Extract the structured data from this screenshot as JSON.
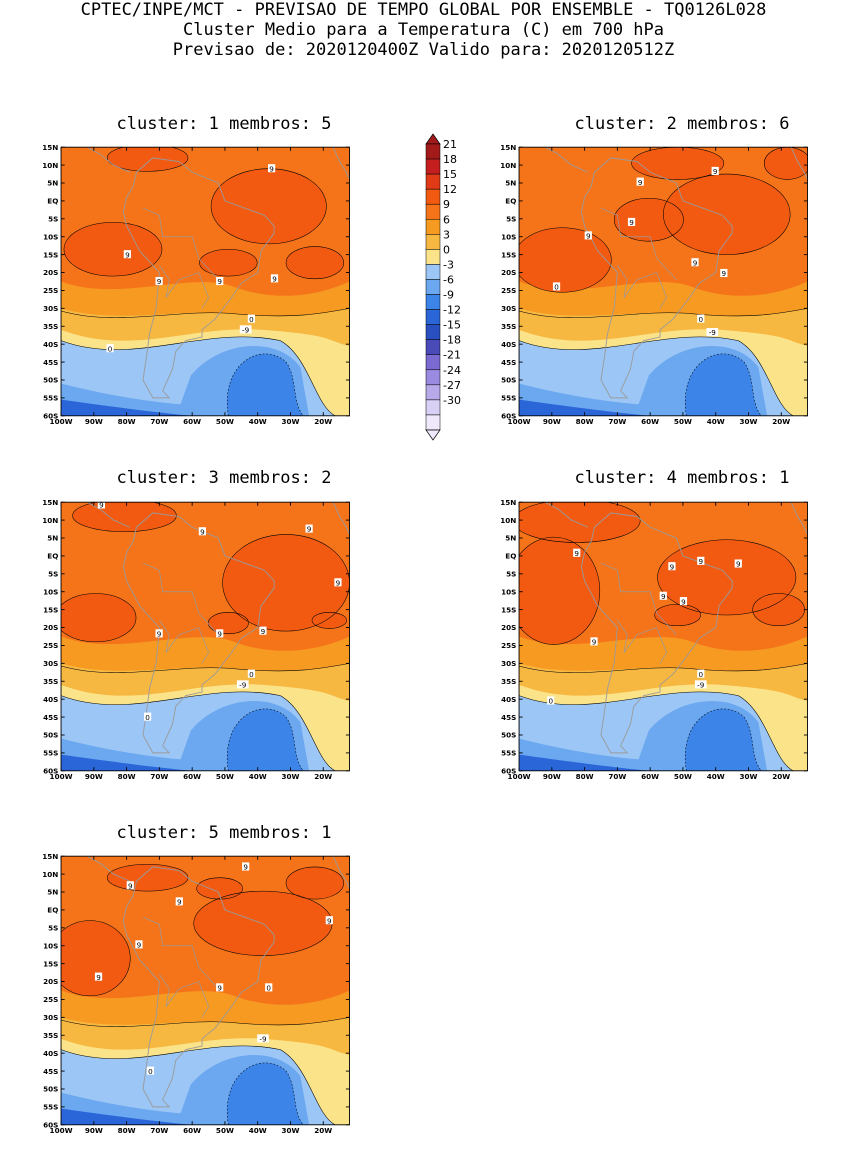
{
  "header": {
    "line1": "CPTEC/INPE/MCT - PREVISAO DE TEMPO GLOBAL POR ENSEMBLE - TQ0126L028",
    "line2": "Cluster Medio para a Temperatura (C) em 700 hPa",
    "line3": "Previsao de: 2020120400Z   Valido para: 2020120512Z"
  },
  "axes": {
    "lat_labels": [
      "15N",
      "10N",
      "5N",
      "EQ",
      "5S",
      "10S",
      "15S",
      "20S",
      "25S",
      "30S",
      "35S",
      "40S",
      "45S",
      "50S",
      "55S",
      "60S"
    ],
    "lon_labels": [
      "100W",
      "90W",
      "80W",
      "70W",
      "60W",
      "50W",
      "40W",
      "30W",
      "20W"
    ]
  },
  "colorbar": {
    "labels": [
      "21",
      "18",
      "15",
      "12",
      "9",
      "6",
      "3",
      "0",
      "-3",
      "-6",
      "-9",
      "-12",
      "-15",
      "-18",
      "-21",
      "-24",
      "-27",
      "-30"
    ],
    "colors": [
      "#a31a1a",
      "#c41e1e",
      "#e03a16",
      "#f25a12",
      "#f5741a",
      "#f79a22",
      "#f7b842",
      "#fbe38a",
      "#9cc6f5",
      "#6ba8f0",
      "#3c84e8",
      "#2a66d8",
      "#2a4fc0",
      "#4a4ab8",
      "#7a6ad2",
      "#9a8ae0",
      "#b8aaea",
      "#d8d0f5",
      "#efe9fb"
    ]
  },
  "panels": [
    {
      "title": "cluster: 1  membros: 5",
      "labels": [
        "9",
        "9",
        "9",
        "9",
        "9",
        "0",
        "0",
        "-9"
      ]
    },
    {
      "title": "cluster: 2  membros: 6",
      "labels": [
        "9",
        "9",
        "9",
        "9",
        "9",
        "9",
        "0",
        "0",
        "-9"
      ]
    },
    {
      "title": "cluster: 3  membros: 2",
      "labels": [
        "9",
        "9",
        "9",
        "9",
        "9",
        "9",
        "9",
        "0",
        "0",
        "-9"
      ]
    },
    {
      "title": "cluster: 4  membros: 1",
      "labels": [
        "9",
        "9",
        "9",
        "9",
        "9",
        "9",
        "9",
        "0",
        "0",
        "-9"
      ]
    },
    {
      "title": "cluster: 5  membros: 1",
      "labels": [
        "9",
        "9",
        "9",
        "9",
        "9",
        "9",
        "9",
        "0",
        "0",
        "-9"
      ]
    }
  ]
}
